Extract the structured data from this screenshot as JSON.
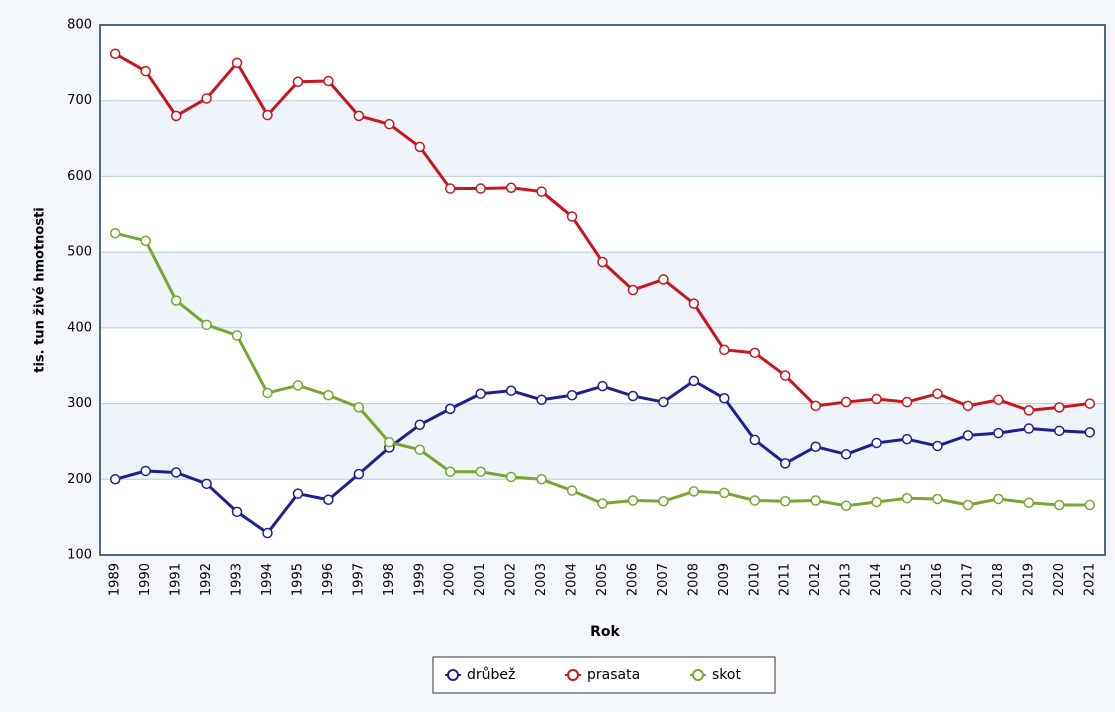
{
  "chart_data": {
    "type": "line",
    "xlabel": "Rok",
    "ylabel": "tis. tun živé hmotnosti",
    "categories": [
      "1989",
      "1990",
      "1991",
      "1992",
      "1993",
      "1994",
      "1995",
      "1996",
      "1997",
      "1998",
      "1999",
      "2000",
      "2001",
      "2002",
      "2003",
      "2004",
      "2005",
      "2006",
      "2007",
      "2008",
      "2009",
      "2010",
      "2011",
      "2012",
      "2013",
      "2014",
      "2015",
      "2016",
      "2017",
      "2018",
      "2019",
      "2020",
      "2021"
    ],
    "series": [
      {
        "name": "drůbež",
        "color": "#1f1f8f",
        "values": [
          200,
          211,
          209,
          194,
          157,
          129,
          181,
          173,
          207,
          242,
          272,
          293,
          313,
          317,
          305,
          311,
          323,
          310,
          302,
          330,
          307,
          252,
          221,
          243,
          233,
          248,
          253,
          244,
          258,
          261,
          267,
          264,
          262
        ]
      },
      {
        "name": "prasata",
        "color": "#c8161d",
        "values": [
          762,
          739,
          680,
          703,
          750,
          681,
          725,
          726,
          680,
          669,
          639,
          584,
          584,
          585,
          580,
          547,
          487,
          450,
          464,
          432,
          371,
          367,
          337,
          297,
          302,
          306,
          302,
          313,
          297,
          305,
          291,
          295,
          300
        ]
      },
      {
        "name": "skot",
        "color": "#78a630",
        "values": [
          525,
          515,
          436,
          404,
          390,
          314,
          324,
          311,
          295,
          249,
          239,
          210,
          210,
          203,
          200,
          185,
          168,
          172,
          171,
          184,
          182,
          172,
          171,
          172,
          165,
          170,
          175,
          174,
          166,
          174,
          169,
          166,
          166
        ]
      }
    ],
    "ylim": [
      100,
      800
    ],
    "yticks": [
      100,
      200,
      300,
      400,
      500,
      600,
      700,
      800
    ],
    "grid": true,
    "legend": "bottom"
  }
}
